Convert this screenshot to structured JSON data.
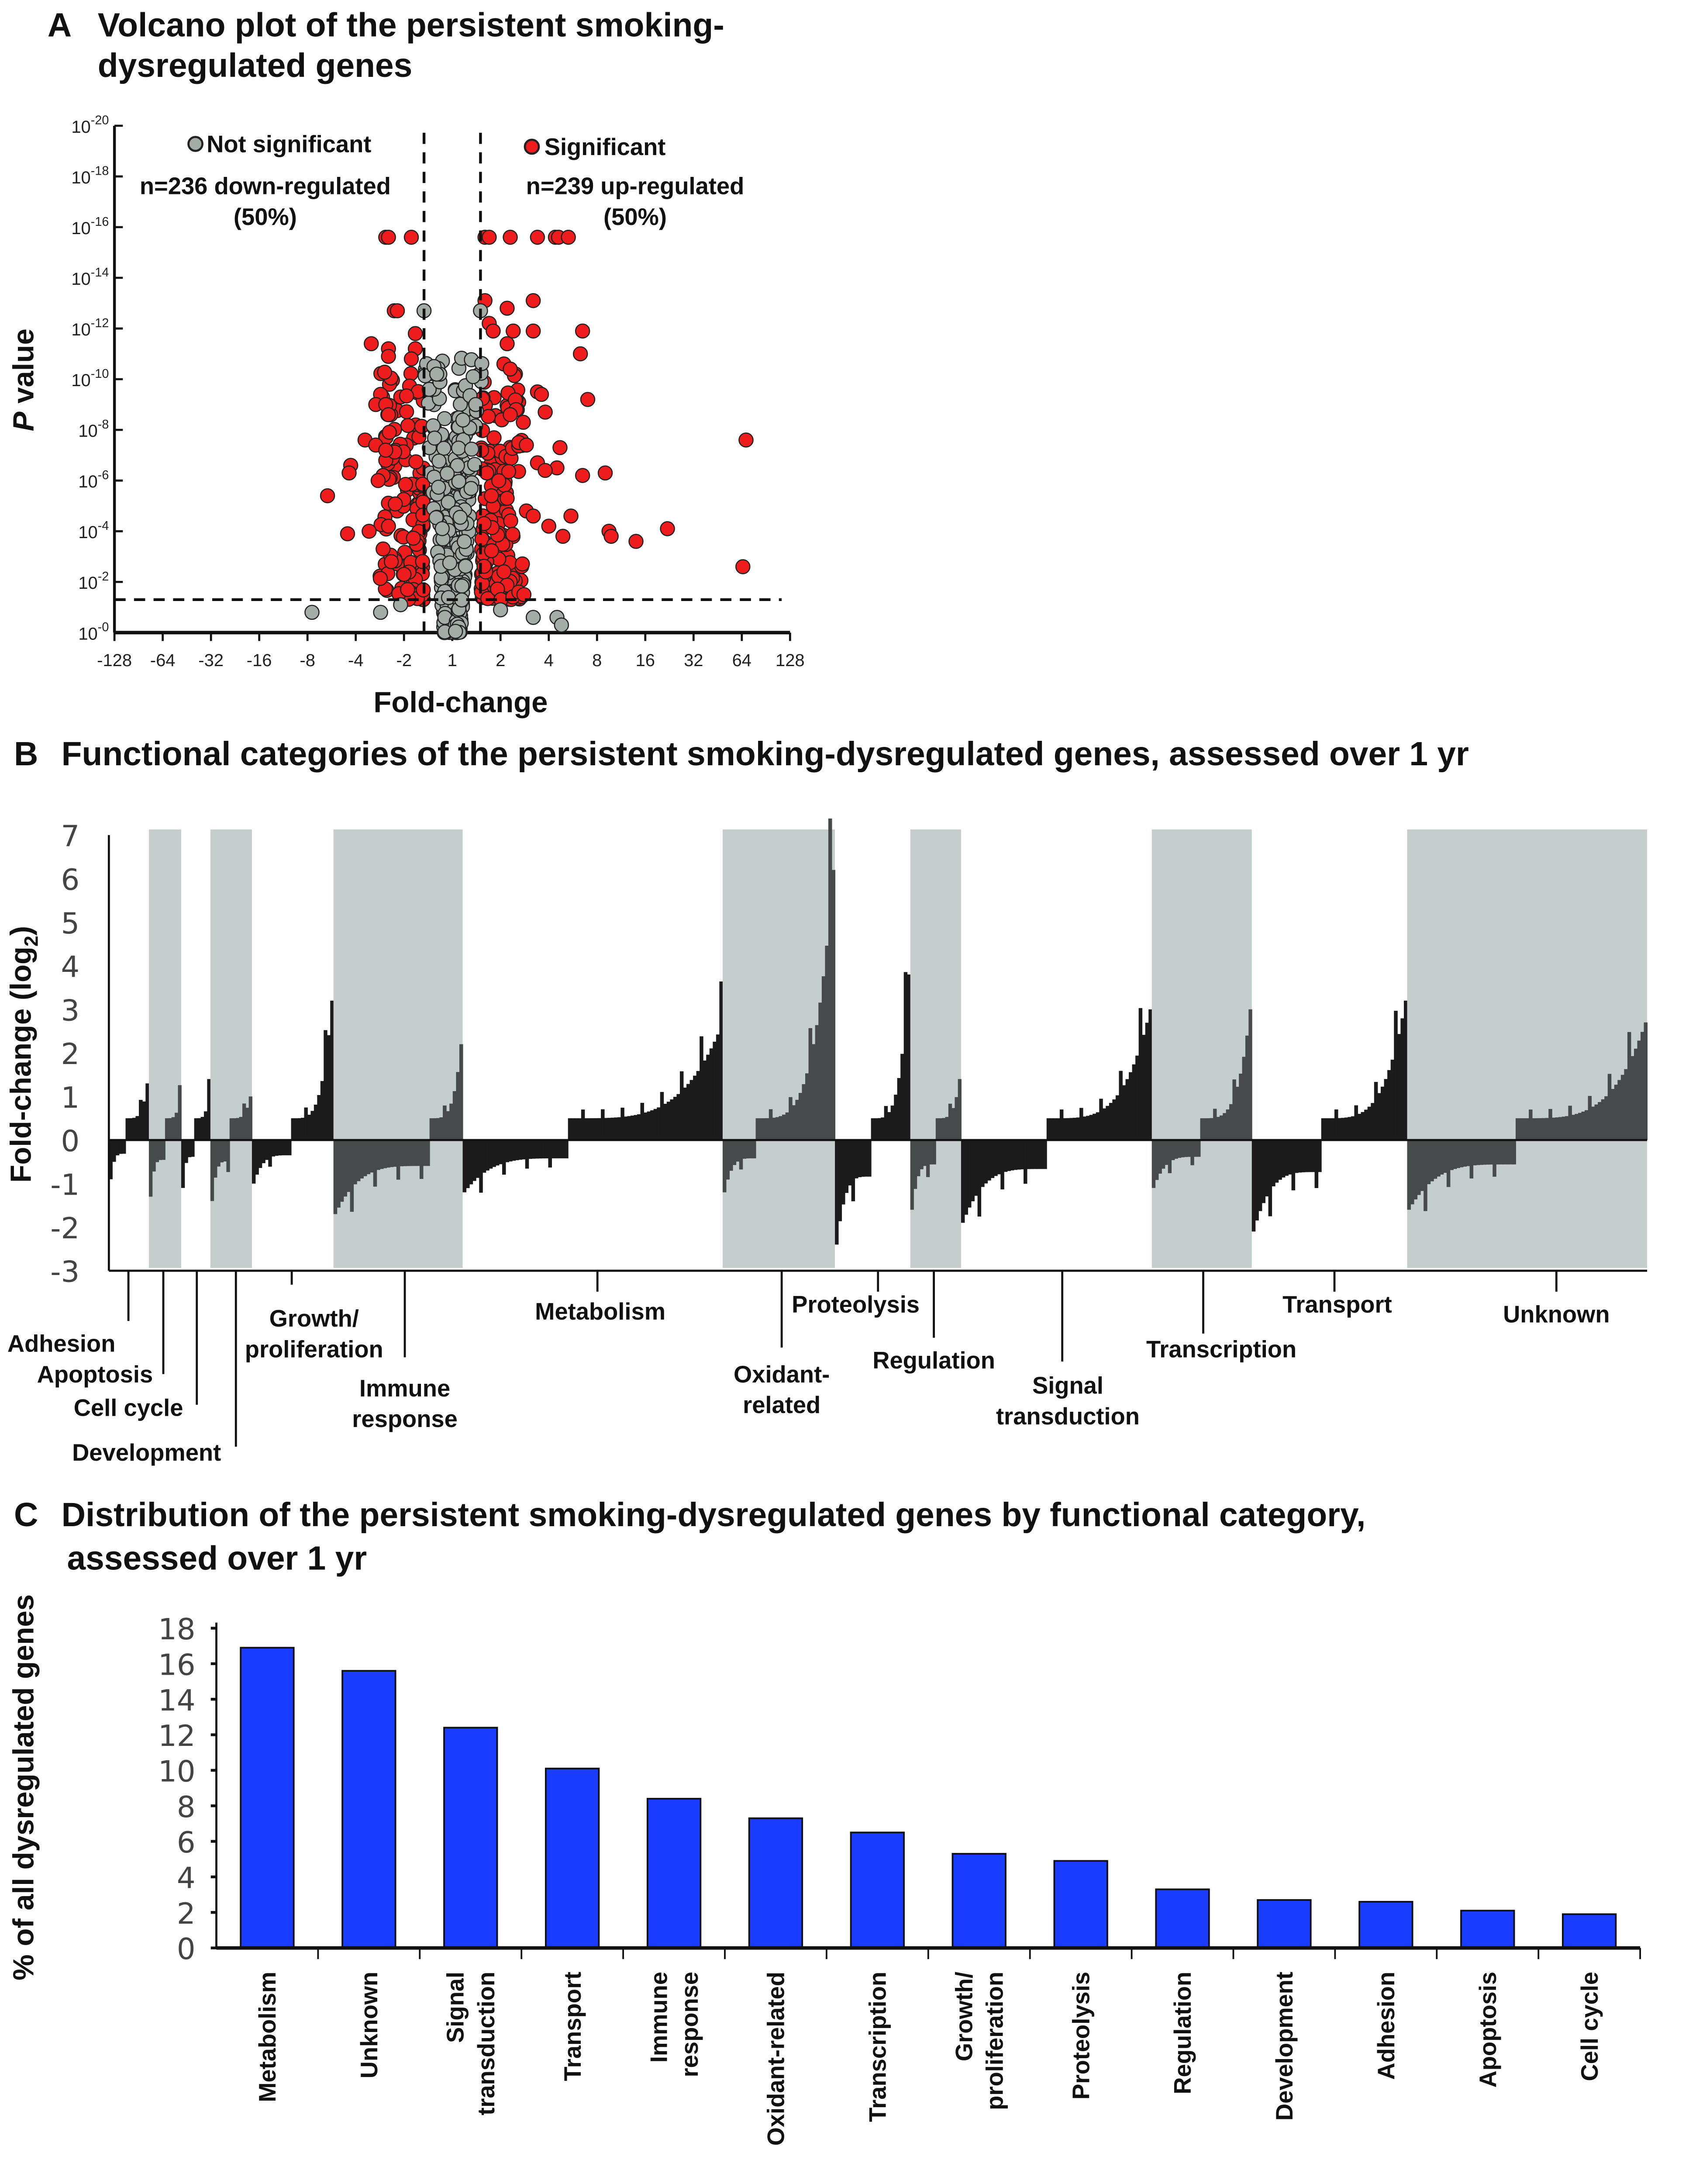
{
  "chart_data": [
    {
      "type": "scatter",
      "panel": "A",
      "title": "Volcano plot of the persistent smoking-dysregulated genes",
      "panel_letter": "A",
      "xlabel": "Fold-change",
      "ylabel_p": "P",
      "ylabel_rest": " value",
      "x_ticks": [
        "-128",
        "-64",
        "-32",
        "-16",
        "-8",
        "-4",
        "-2",
        "1",
        "2",
        "4",
        "8",
        "16",
        "32",
        "64",
        "128"
      ],
      "y_tick_base": "10",
      "y_tick_exponents": [
        "-20",
        "-18",
        "-16",
        "-14",
        "-12",
        "-10",
        "-8",
        "-6",
        "-4",
        "-2",
        "-0"
      ],
      "ylim_neglog10": [
        0,
        20
      ],
      "fold_thresholds": [
        -1.5,
        1.5
      ],
      "p_threshold_neglog10": 1.3,
      "legend": {
        "not_significant": "Not significant",
        "significant": "Significant"
      },
      "annotations": {
        "down": "n=236 down-regulated",
        "down_pct": "(50%)",
        "up": "n=239 up-regulated",
        "up_pct": "(50%)"
      },
      "colors": {
        "significant": "#ee1c1c",
        "not_significant": "#a4aca8"
      },
      "significant_points": [
        [
          -2.6,
          15.6
        ],
        [
          -2.5,
          15.6
        ],
        [
          -1.8,
          15.6
        ],
        [
          1.6,
          15.6
        ],
        [
          1.7,
          15.6
        ],
        [
          2.3,
          15.6
        ],
        [
          3.4,
          15.6
        ],
        [
          4.4,
          15.6
        ],
        [
          4.6,
          15.6
        ],
        [
          5.3,
          15.6
        ],
        [
          -2.3,
          12.7
        ],
        [
          -2.2,
          12.7
        ],
        [
          -1.7,
          11.8
        ],
        [
          -3.2,
          11.4
        ],
        [
          -2.5,
          11.2
        ],
        [
          -2.5,
          10.9
        ],
        [
          -1.7,
          11.2
        ],
        [
          -1.8,
          10.8
        ],
        [
          -2.8,
          9.4
        ],
        [
          -3.0,
          9.0
        ],
        [
          -2.6,
          9.0
        ],
        [
          -2.5,
          8.6
        ],
        [
          -3.5,
          7.6
        ],
        [
          -3.0,
          7.4
        ],
        [
          -2.6,
          7.2
        ],
        [
          -4.3,
          6.6
        ],
        [
          -4.4,
          6.3
        ],
        [
          -2.9,
          6.0
        ],
        [
          -6.0,
          5.4
        ],
        [
          -4.5,
          3.9
        ],
        [
          -3.3,
          4.0
        ],
        [
          -2.5,
          4.2
        ],
        [
          -2.7,
          3.3
        ],
        [
          -2.4,
          2.8
        ],
        [
          -2.0,
          2.3
        ],
        [
          -1.9,
          1.7
        ],
        [
          1.6,
          13.1
        ],
        [
          2.2,
          12.8
        ],
        [
          3.2,
          13.1
        ],
        [
          1.7,
          12.2
        ],
        [
          1.8,
          11.9
        ],
        [
          2.4,
          11.9
        ],
        [
          3.2,
          11.9
        ],
        [
          6.5,
          11.9
        ],
        [
          2.2,
          11.4
        ],
        [
          6.3,
          11.0
        ],
        [
          2.1,
          10.6
        ],
        [
          2.3,
          10.4
        ],
        [
          3.4,
          9.5
        ],
        [
          3.6,
          9.4
        ],
        [
          7.0,
          9.2
        ],
        [
          2.5,
          8.8
        ],
        [
          3.8,
          8.7
        ],
        [
          2.3,
          8.6
        ],
        [
          2.6,
          7.5
        ],
        [
          2.9,
          7.4
        ],
        [
          4.7,
          7.3
        ],
        [
          3.4,
          6.7
        ],
        [
          4.5,
          6.5
        ],
        [
          3.8,
          6.4
        ],
        [
          6.5,
          6.2
        ],
        [
          9.0,
          6.3
        ],
        [
          2.2,
          5.3
        ],
        [
          2.9,
          4.8
        ],
        [
          3.2,
          4.6
        ],
        [
          5.5,
          4.6
        ],
        [
          4.0,
          4.2
        ],
        [
          9.5,
          4.0
        ],
        [
          9.8,
          3.8
        ],
        [
          4.9,
          3.8
        ],
        [
          14,
          3.6
        ],
        [
          22,
          4.1
        ],
        [
          68,
          7.6
        ],
        [
          65,
          2.6
        ],
        [
          2.6,
          1.6
        ],
        [
          2.8,
          1.5
        ],
        [
          2.1,
          2.4
        ]
      ],
      "not_significant_points": [
        [
          -1.5,
          12.7
        ],
        [
          1.5,
          12.7
        ],
        [
          -7.5,
          0.8
        ],
        [
          -2.8,
          0.8
        ],
        [
          3.2,
          0.6
        ],
        [
          4.5,
          0.6
        ],
        [
          4.8,
          0.3
        ],
        [
          -1.3,
          10.5
        ],
        [
          -1.25,
          10.2
        ],
        [
          1.35,
          10.1
        ],
        [
          1.4,
          9.0
        ],
        [
          2.0,
          0.9
        ],
        [
          -2.1,
          1.1
        ]
      ]
    },
    {
      "type": "bar",
      "panel": "B",
      "panel_letter": "B",
      "title": "Functional categories of the persistent smoking-dysregulated genes, assessed over 1 yr",
      "ylabel_main": "Fold-change (log",
      "ylabel_sub": "2",
      "ylabel_end": ")",
      "ylim": [
        -3,
        7
      ],
      "y_ticks": [
        "7",
        "6",
        "5",
        "4",
        "3",
        "2",
        "1",
        "0",
        "-1",
        "-2",
        "-3"
      ],
      "colors": {
        "shade": "#c5cdcd",
        "bar": "#1b1b1b",
        "bar_shaded": "#474a4a"
      },
      "categories": [
        {
          "name": "Adhesion",
          "lines": [
            "Adhesion"
          ],
          "share": 2.6,
          "shaded": false,
          "down_min": -0.9,
          "up_max": 1.3,
          "up_frac": 0.6
        },
        {
          "name": "Apoptosis",
          "lines": [
            "Apoptosis"
          ],
          "share": 2.1,
          "shaded": true,
          "down_min": -1.3,
          "up_max": 0.9,
          "up_frac": 0.5
        },
        {
          "name": "Cell cycle",
          "lines": [
            "Cell cycle"
          ],
          "share": 1.9,
          "shaded": false,
          "down_min": -1.1,
          "up_max": 1.0,
          "up_frac": 0.5
        },
        {
          "name": "Development",
          "lines": [
            "Development"
          ],
          "share": 2.7,
          "shaded": true,
          "down_min": -1.4,
          "up_max": 1.0,
          "up_frac": 0.55
        },
        {
          "name": "Growth/proliferation",
          "lines": [
            "Growth/",
            "proliferation"
          ],
          "share": 5.3,
          "shaded": false,
          "down_min": -1.0,
          "up_max": 3.2,
          "up_frac": 0.5
        },
        {
          "name": "Immune response",
          "lines": [
            "Immune",
            "response"
          ],
          "share": 8.4,
          "shaded": true,
          "down_min": -1.7,
          "up_max": 2.2,
          "up_frac": 0.25
        },
        {
          "name": "Metabolism",
          "lines": [
            "Metabolism"
          ],
          "share": 16.9,
          "shaded": false,
          "down_min": -1.2,
          "up_max": 2.6,
          "up_frac": 0.6
        },
        {
          "name": "Oxidant-related",
          "lines": [
            "Oxidant-",
            "related"
          ],
          "share": 7.3,
          "shaded": true,
          "down_min": -1.2,
          "up_max": 6.2,
          "up_frac": 0.7
        },
        {
          "name": "Proteolysis",
          "lines": [
            "Proteolysis"
          ],
          "share": 4.9,
          "shaded": false,
          "down_min": -2.4,
          "up_max": 3.8,
          "up_frac": 0.5
        },
        {
          "name": "Regulation",
          "lines": [
            "Regulation"
          ],
          "share": 3.3,
          "shaded": true,
          "down_min": -1.6,
          "up_max": 1.4,
          "up_frac": 0.5
        },
        {
          "name": "Signal transduction",
          "lines": [
            "Signal",
            "transduction"
          ],
          "share": 12.4,
          "shaded": false,
          "down_min": -1.9,
          "up_max": 3.0,
          "up_frac": 0.55
        },
        {
          "name": "Transcription",
          "lines": [
            "Transcription"
          ],
          "share": 6.5,
          "shaded": true,
          "down_min": -1.1,
          "up_max": 3.0,
          "up_frac": 0.5
        },
        {
          "name": "Transport",
          "lines": [
            "Transport"
          ],
          "share": 10.1,
          "shaded": false,
          "down_min": -2.1,
          "up_max": 3.2,
          "up_frac": 0.55
        },
        {
          "name": "Unknown",
          "lines": [
            "Unknown"
          ],
          "share": 15.6,
          "shaded": true,
          "down_min": -1.6,
          "up_max": 2.7,
          "up_frac": 0.55
        }
      ]
    },
    {
      "type": "bar",
      "panel": "C",
      "panel_letter": "C",
      "title_line1": "Distribution of the persistent smoking-dysregulated genes by functional category,",
      "title_line2": "assessed over 1 yr",
      "ylabel": "% of all dysregulated genes",
      "ylim": [
        0,
        18
      ],
      "y_ticks": [
        "18",
        "16",
        "14",
        "12",
        "10",
        "8",
        "6",
        "4",
        "2",
        "0"
      ],
      "bar_color": "#1a3cff",
      "categories": [
        [
          "Metabolism"
        ],
        [
          "Unknown"
        ],
        [
          "Signal",
          "transduction"
        ],
        [
          "Transport"
        ],
        [
          "Immune",
          "response"
        ],
        [
          "Oxidant-related"
        ],
        [
          "Transcription"
        ],
        [
          "Growth/",
          "proliferation"
        ],
        [
          "Proteolysis"
        ],
        [
          "Regulation"
        ],
        [
          "Development"
        ],
        [
          "Adhesion"
        ],
        [
          "Apoptosis"
        ],
        [
          "Cell cycle"
        ]
      ],
      "values": [
        16.9,
        15.6,
        12.4,
        10.1,
        8.4,
        7.3,
        6.5,
        5.3,
        4.9,
        3.3,
        2.7,
        2.6,
        2.1,
        1.9
      ]
    }
  ]
}
